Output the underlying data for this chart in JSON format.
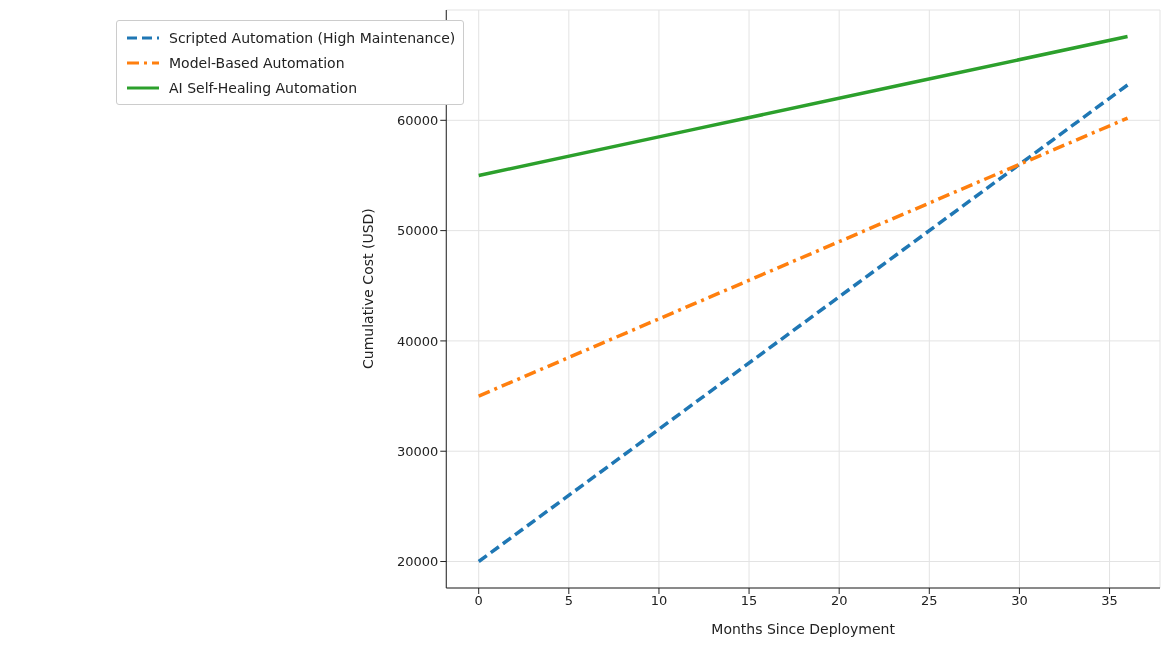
{
  "chart_data": {
    "type": "line",
    "xlabel": "Months Since Deployment",
    "ylabel": "Cumulative Cost (USD)",
    "x": [
      0,
      12,
      24,
      36
    ],
    "series": [
      {
        "name": "Scripted Automation (High Maintenance)",
        "color": "#1f77b4",
        "line_style": "dashed",
        "values": [
          20000,
          34400,
          48800,
          63200
        ]
      },
      {
        "name": "Model-Based Automation",
        "color": "#ff7f0e",
        "line_style": "dashdot",
        "values": [
          35000,
          43400,
          51800,
          60200
        ]
      },
      {
        "name": "AI Self-Healing Automation",
        "color": "#2ca02c",
        "line_style": "solid",
        "values": [
          55000,
          59200,
          63400,
          67600
        ]
      }
    ],
    "xlim": [
      -1.8,
      37.8
    ],
    "xticks": [
      0,
      5,
      10,
      15,
      20,
      25,
      30,
      35
    ],
    "ylim": [
      17600,
      70000
    ],
    "yticks": [
      20000,
      30000,
      40000,
      50000,
      60000
    ],
    "grid": true,
    "legend": "top left",
    "marker": "none"
  }
}
